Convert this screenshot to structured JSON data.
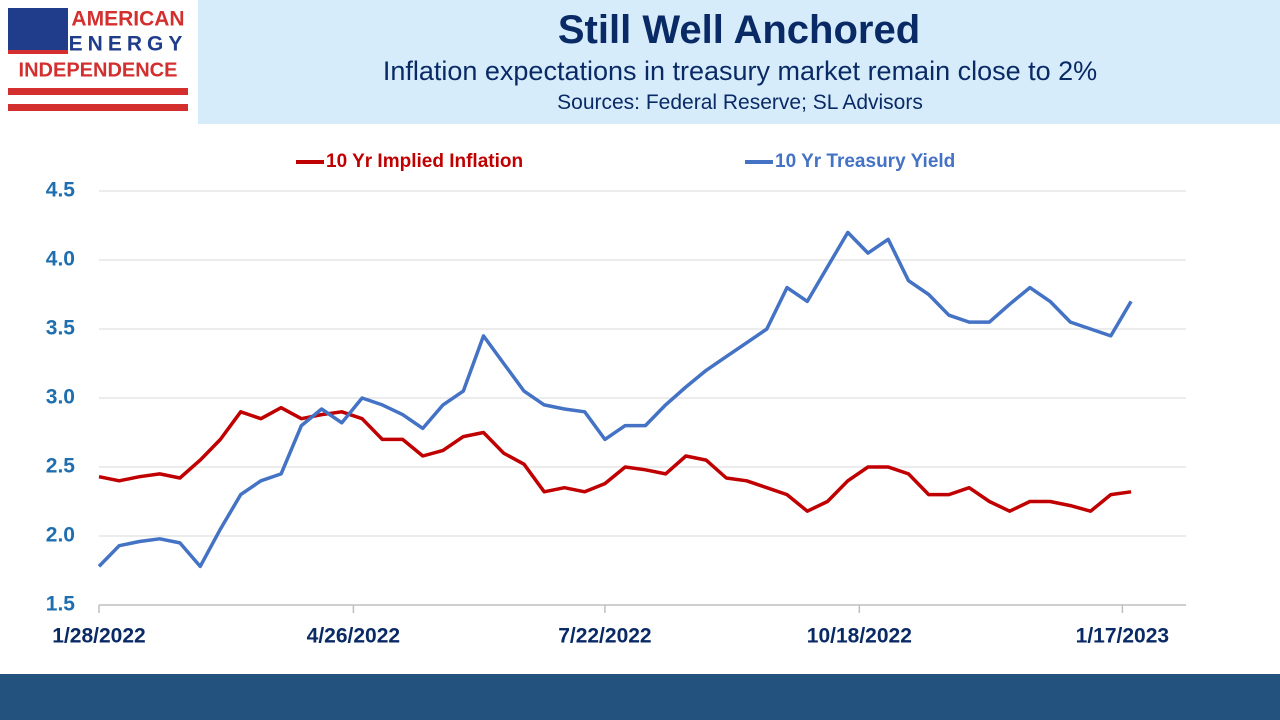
{
  "logo": {
    "lines": [
      "AMERICAN",
      "ENERGY",
      "INDEPENDENCE"
    ]
  },
  "chart_data": {
    "type": "line",
    "title": "Still Well Anchored",
    "subtitle": "Inflation expectations in treasury market remain close to 2%",
    "source": "Sources: Federal Reserve; SL Advisors",
    "x": [
      "1/28/2022",
      "2/4/2022",
      "2/11/2022",
      "2/18/2022",
      "2/25/2022",
      "3/4/2022",
      "3/11/2022",
      "3/18/2022",
      "3/25/2022",
      "4/1/2022",
      "4/8/2022",
      "4/15/2022",
      "4/22/2022",
      "4/29/2022",
      "5/6/2022",
      "5/13/2022",
      "5/20/2022",
      "5/27/2022",
      "6/3/2022",
      "6/10/2022",
      "6/17/2022",
      "6/24/2022",
      "7/1/2022",
      "7/8/2022",
      "7/15/2022",
      "7/22/2022",
      "7/29/2022",
      "8/5/2022",
      "8/12/2022",
      "8/19/2022",
      "8/26/2022",
      "9/2/2022",
      "9/9/2022",
      "9/16/2022",
      "9/23/2022",
      "9/30/2022",
      "10/7/2022",
      "10/14/2022",
      "10/21/2022",
      "10/28/2022",
      "11/4/2022",
      "11/11/2022",
      "11/18/2022",
      "11/25/2022",
      "12/2/2022",
      "12/9/2022",
      "12/16/2022",
      "12/23/2022",
      "12/30/2022",
      "1/6/2023",
      "1/13/2023",
      "1/20/2023"
    ],
    "series": [
      {
        "name": "10 Yr Implied Inflation",
        "color": "#c00000",
        "values": [
          2.43,
          2.4,
          2.43,
          2.45,
          2.42,
          2.55,
          2.7,
          2.9,
          2.85,
          2.93,
          2.85,
          2.88,
          2.9,
          2.85,
          2.7,
          2.7,
          2.58,
          2.62,
          2.72,
          2.75,
          2.6,
          2.52,
          2.32,
          2.35,
          2.32,
          2.38,
          2.5,
          2.48,
          2.45,
          2.58,
          2.55,
          2.42,
          2.4,
          2.35,
          2.3,
          2.18,
          2.25,
          2.4,
          2.5,
          2.5,
          2.45,
          2.3,
          2.3,
          2.35,
          2.25,
          2.18,
          2.25,
          2.25,
          2.22,
          2.18,
          2.3,
          2.32
        ]
      },
      {
        "name": "10 Yr Treasury Yield",
        "color": "#4472c4",
        "values": [
          1.78,
          1.93,
          1.96,
          1.98,
          1.95,
          1.78,
          2.05,
          2.3,
          2.4,
          2.45,
          2.8,
          2.92,
          2.82,
          3.0,
          2.95,
          2.88,
          2.78,
          2.95,
          3.05,
          3.45,
          3.25,
          3.05,
          2.95,
          2.92,
          2.9,
          2.7,
          2.8,
          2.8,
          2.95,
          3.08,
          3.2,
          3.3,
          3.4,
          3.5,
          3.8,
          3.7,
          3.95,
          4.2,
          4.05,
          4.15,
          3.85,
          3.75,
          3.6,
          3.55,
          3.55,
          3.68,
          3.8,
          3.7,
          3.55,
          3.5,
          3.45,
          3.7
        ]
      }
    ],
    "xlim": [
      "1/28/2022",
      "2/8/2023"
    ],
    "xticks": [
      "1/28/2022",
      "4/26/2022",
      "7/22/2022",
      "10/18/2022",
      "1/17/2023"
    ],
    "ylim": [
      1.5,
      4.5
    ],
    "yticks": [
      {
        "value": 1.5,
        "label": "1.5"
      },
      {
        "value": 2,
        "label": "2.0"
      },
      {
        "value": 2.5,
        "label": "2.5"
      },
      {
        "value": 3,
        "label": "3.0"
      },
      {
        "value": 3.5,
        "label": "3.5"
      },
      {
        "value": 4,
        "label": "4.0"
      },
      {
        "value": 4.5,
        "label": "4.5"
      }
    ],
    "grid": true,
    "legend": "top"
  }
}
